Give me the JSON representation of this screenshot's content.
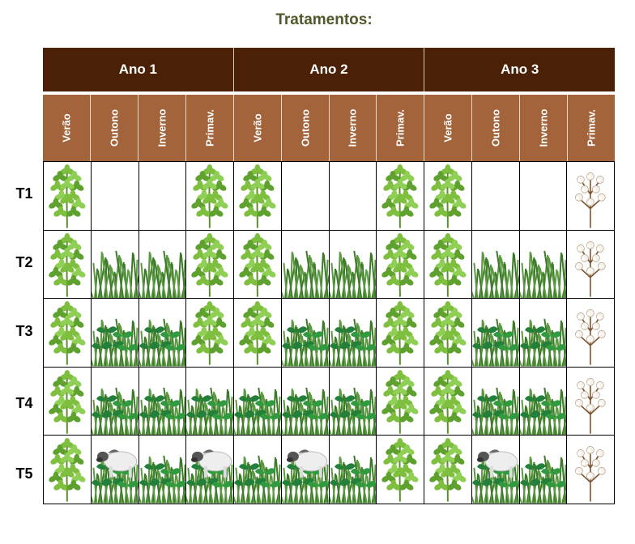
{
  "title": "Tratamentos:",
  "years": [
    "Ano 1",
    "Ano 2",
    "Ano 3"
  ],
  "seasons": [
    "Verão",
    "Outono",
    "Inverno",
    "Primav.",
    "Verão",
    "Outono",
    "Inverno",
    "Primav.",
    "Verão",
    "Outono",
    "Inverno",
    "Primav."
  ],
  "treatments": [
    {
      "label": "T1",
      "cells": [
        "soybean",
        "empty",
        "empty",
        "soybean",
        "soybean",
        "empty",
        "empty",
        "soybean",
        "soybean",
        "empty",
        "empty",
        "cotton"
      ]
    },
    {
      "label": "T2",
      "cells": [
        "soybean",
        "grass",
        "grass",
        "soybean",
        "soybean",
        "grass",
        "grass",
        "soybean",
        "soybean",
        "grass",
        "grass",
        "cotton"
      ]
    },
    {
      "label": "T3",
      "cells": [
        "soybean",
        "grass-cover",
        "grass-cover",
        "soybean",
        "soybean",
        "grass-cover",
        "grass-cover",
        "soybean",
        "soybean",
        "grass-cover",
        "grass-cover",
        "cotton"
      ]
    },
    {
      "label": "T4",
      "cells": [
        "soybean",
        "grass-cover",
        "grass-cover",
        "grass-cover",
        "grass-cover",
        "grass-cover",
        "grass-cover",
        "soybean",
        "soybean",
        "grass-cover",
        "grass-cover",
        "cotton"
      ]
    },
    {
      "label": "T5",
      "cells": [
        "soybean",
        "cattle-grass",
        "grass-cover",
        "cattle-grass",
        "grass-cover",
        "cattle-grass",
        "grass-cover",
        "soybean",
        "soybean",
        "cattle-grass",
        "grass-cover",
        "cotton"
      ]
    }
  ],
  "colors": {
    "year_header": "#4a2106",
    "season_header": "#a3643b",
    "title": "#4f5a2a"
  }
}
